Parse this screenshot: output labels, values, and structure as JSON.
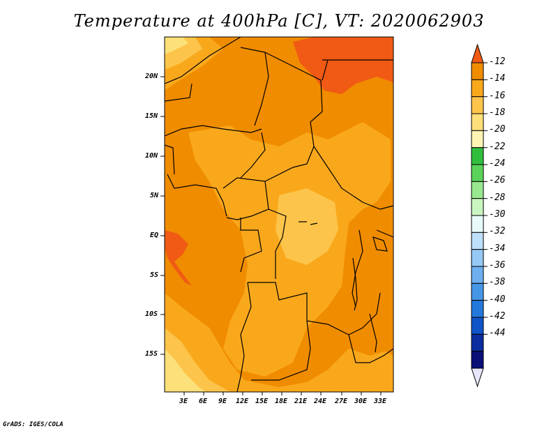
{
  "title": "Temperature at 400hPa [C], VT: 2020062903",
  "footer": "GrADS: IGES/COLA",
  "y_ticks": [
    "20N",
    "15N",
    "10N",
    "5N",
    "EQ",
    "5S",
    "10S",
    "15S"
  ],
  "x_ticks": [
    "3E",
    "6E",
    "9E",
    "12E",
    "15E",
    "18E",
    "21E",
    "24E",
    "27E",
    "30E",
    "33E"
  ],
  "colorbar": {
    "labels": [
      "-12",
      "-14",
      "-16",
      "-18",
      "-20",
      "-22",
      "-24",
      "-26",
      "-28",
      "-30",
      "-32",
      "-34",
      "-36",
      "-38",
      "-40",
      "-42",
      "-44"
    ],
    "colors": [
      "#f05a14",
      "#f08c00",
      "#f9a81c",
      "#fcc44a",
      "#fce07a",
      "#fdf4b4",
      "#2fbe3c",
      "#5ad35a",
      "#98e890",
      "#c8f5c0",
      "#e8fbf8",
      "#bee0fa",
      "#96c8f5",
      "#6eaff0",
      "#4696e6",
      "#2378dc",
      "#0f55c8",
      "#0a2da0",
      "#0a1078",
      "#e6e6fa"
    ]
  },
  "map_colors": {
    "c_m12": "#f05a14",
    "c_m14": "#f08c00",
    "c_m16": "#f9a81c",
    "c_m18": "#fcc44a",
    "c_m20": "#fce07a"
  }
}
